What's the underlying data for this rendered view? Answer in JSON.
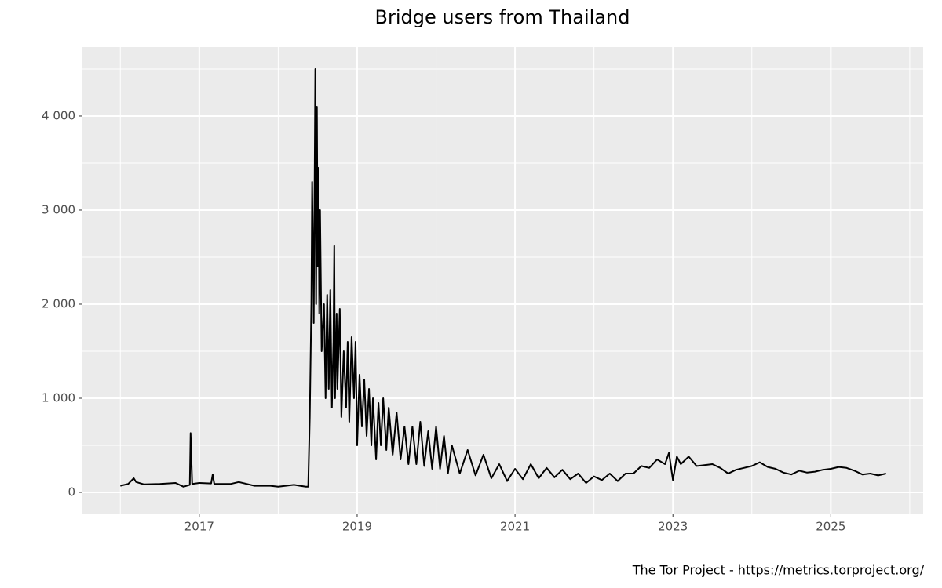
{
  "chart_data": {
    "type": "line",
    "title": "Bridge users from Thailand",
    "caption": "The Tor Project - https://metrics.torproject.org/",
    "x": [
      2016.0,
      2016.1,
      2016.17,
      2016.2,
      2016.3,
      2016.5,
      2016.7,
      2016.8,
      2016.88,
      2016.89,
      2016.91,
      2017.0,
      2017.15,
      2017.17,
      2017.19,
      2017.4,
      2017.5,
      2017.7,
      2017.9,
      2018.0,
      2018.2,
      2018.35,
      2018.38,
      2018.4,
      2018.42,
      2018.43,
      2018.45,
      2018.47,
      2018.48,
      2018.49,
      2018.5,
      2018.51,
      2018.52,
      2018.53,
      2018.55,
      2018.58,
      2018.6,
      2018.62,
      2018.64,
      2018.66,
      2018.68,
      2018.7,
      2018.71,
      2018.72,
      2018.74,
      2018.75,
      2018.78,
      2018.8,
      2018.83,
      2018.86,
      2018.88,
      2018.9,
      2018.93,
      2018.96,
      2018.98,
      2019.0,
      2019.03,
      2019.06,
      2019.09,
      2019.12,
      2019.15,
      2019.18,
      2019.2,
      2019.24,
      2019.27,
      2019.3,
      2019.33,
      2019.37,
      2019.4,
      2019.45,
      2019.5,
      2019.55,
      2019.6,
      2019.65,
      2019.7,
      2019.75,
      2019.8,
      2019.85,
      2019.9,
      2019.95,
      2020.0,
      2020.05,
      2020.1,
      2020.15,
      2020.2,
      2020.3,
      2020.4,
      2020.5,
      2020.6,
      2020.7,
      2020.8,
      2020.9,
      2021.0,
      2021.1,
      2021.2,
      2021.3,
      2021.4,
      2021.5,
      2021.6,
      2021.7,
      2021.8,
      2021.9,
      2022.0,
      2022.1,
      2022.2,
      2022.3,
      2022.4,
      2022.5,
      2022.6,
      2022.7,
      2022.8,
      2022.9,
      2022.95,
      2023.0,
      2023.05,
      2023.1,
      2023.2,
      2023.3,
      2023.5,
      2023.6,
      2023.7,
      2023.8,
      2023.9,
      2024.0,
      2024.1,
      2024.2,
      2024.3,
      2024.4,
      2024.5,
      2024.6,
      2024.7,
      2024.8,
      2024.9,
      2025.0,
      2025.1,
      2025.2,
      2025.3,
      2025.4,
      2025.5,
      2025.6,
      2025.7
    ],
    "series": [
      {
        "name": "Bridge users",
        "color": "#000000",
        "values": [
          70,
          90,
          150,
          110,
          85,
          90,
          100,
          60,
          80,
          630,
          90,
          100,
          95,
          190,
          90,
          90,
          110,
          70,
          70,
          60,
          80,
          60,
          60,
          800,
          2000,
          3300,
          1800,
          4500,
          2000,
          4100,
          2400,
          3450,
          1900,
          3000,
          1500,
          2000,
          1000,
          2100,
          1100,
          2150,
          900,
          1600,
          2620,
          1000,
          1900,
          1100,
          1950,
          800,
          1500,
          900,
          1600,
          750,
          1650,
          1000,
          1600,
          500,
          1250,
          700,
          1200,
          600,
          1100,
          500,
          1000,
          350,
          950,
          500,
          1000,
          450,
          900,
          400,
          850,
          350,
          700,
          300,
          700,
          300,
          750,
          280,
          650,
          250,
          700,
          250,
          600,
          200,
          500,
          200,
          450,
          180,
          400,
          150,
          300,
          120,
          250,
          140,
          300,
          150,
          260,
          160,
          240,
          140,
          200,
          100,
          170,
          130,
          200,
          120,
          200,
          200,
          280,
          260,
          350,
          300,
          420,
          130,
          380,
          300,
          380,
          280,
          300,
          260,
          200,
          240,
          260,
          280,
          320,
          270,
          250,
          210,
          190,
          230,
          210,
          220,
          240,
          250,
          270,
          260,
          230,
          190,
          200,
          180,
          200
        ]
      }
    ],
    "xlim": [
      2015.51,
      2026.17
    ],
    "xticks": [
      2017,
      2019,
      2021,
      2023,
      2025
    ],
    "minor_xticks": [
      2016,
      2018,
      2020,
      2022,
      2024,
      2026
    ],
    "ylim": [
      -225,
      4733
    ],
    "yticks": [
      0,
      {
        "value": 1000,
        "label": "1 000"
      },
      {
        "value": 2000,
        "label": "2 000"
      },
      {
        "value": 3000,
        "label": "3 000"
      },
      {
        "value": 4000,
        "label": "4 000"
      }
    ],
    "minor_yticks": [
      500,
      1500,
      2500,
      3500,
      4500
    ],
    "grid": true
  }
}
